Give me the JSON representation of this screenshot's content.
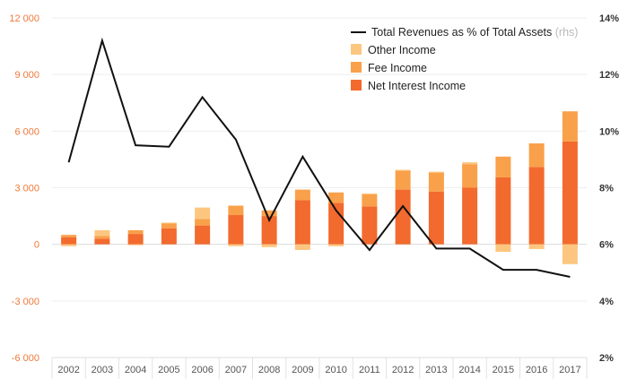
{
  "chart_data": {
    "type": "bar",
    "categories": [
      "2002",
      "2003",
      "2004",
      "2005",
      "2006",
      "2007",
      "2008",
      "2009",
      "2010",
      "2011",
      "2012",
      "2013",
      "2014",
      "2015",
      "2016",
      "2017"
    ],
    "left_axis": {
      "ylim": [
        -6000,
        12000
      ],
      "ticks": [
        12000,
        9000,
        6000,
        3000,
        0,
        -3000,
        -6000
      ],
      "tick_labels": [
        "12 000",
        "9 000",
        "6 000",
        "3 000",
        "0",
        "-3 000",
        "-6 000"
      ]
    },
    "right_axis": {
      "ylim": [
        2,
        14
      ],
      "ticks": [
        14,
        12,
        10,
        8,
        6,
        4,
        2
      ],
      "tick_labels": [
        "14%",
        "12%",
        "10%",
        "8%",
        "6%",
        "4%",
        "2%"
      ]
    },
    "grid": true,
    "legend_position": "top-right",
    "series": [
      {
        "name": "Net Interest Income",
        "kind": "bar",
        "color": "#f26a2e",
        "values": [
          380,
          300,
          550,
          850,
          1000,
          1550,
          1500,
          2350,
          2200,
          2000,
          2900,
          2800,
          3000,
          3550,
          4100,
          5450
        ]
      },
      {
        "name": "Fee Income",
        "kind": "bar",
        "color": "#f9a04a",
        "values": [
          120,
          150,
          200,
          250,
          350,
          500,
          300,
          550,
          550,
          650,
          1000,
          1000,
          1250,
          1100,
          1250,
          1600
        ]
      },
      {
        "name": "Other Income",
        "kind": "bar",
        "color": "#fcc680",
        "values": [
          -100,
          300,
          -50,
          50,
          600,
          -100,
          -150,
          -300,
          -100,
          50,
          50,
          50,
          100,
          -400,
          -250,
          -1050
        ]
      },
      {
        "name": "Total Revenues as % of Total Assets",
        "axis_note": "(rhs)",
        "kind": "line",
        "axis": "right",
        "color": "#111111",
        "values": [
          8.9,
          13.2,
          9.5,
          9.45,
          11.2,
          9.7,
          6.85,
          9.1,
          7.2,
          5.8,
          7.35,
          5.85,
          5.85,
          5.1,
          5.1,
          4.85
        ]
      }
    ]
  }
}
